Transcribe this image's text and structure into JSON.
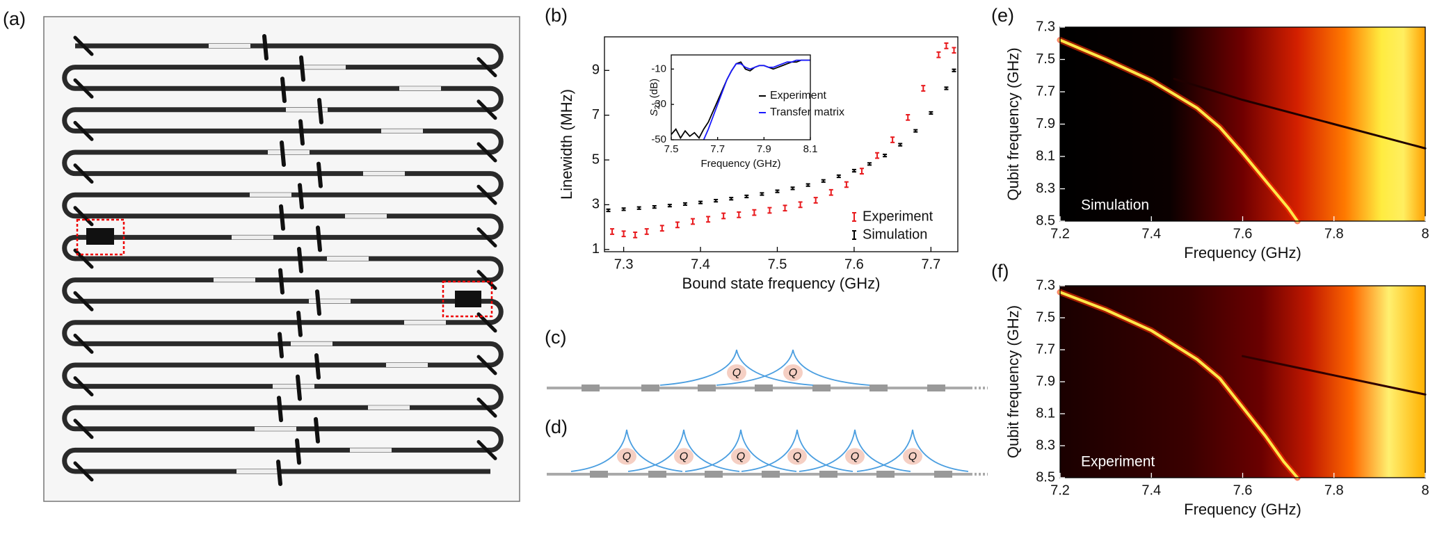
{
  "panel_labels": [
    "(a)",
    "(b)",
    "(c)",
    "(d)",
    "(e)",
    "(f)"
  ],
  "chart_data": [
    {
      "type": "scatter",
      "x_label": "Bound state frequency (GHz)",
      "y_label": "Linewidth (MHz)",
      "xlim": [
        7.275,
        7.735
      ],
      "xticks": [
        7.3,
        7.4,
        7.5,
        7.6,
        7.7
      ],
      "ylim": [
        0.9,
        10.5
      ],
      "yticks": [
        1,
        3,
        5,
        7,
        9
      ],
      "legend": "lower right",
      "series": [
        {
          "name": "Experiment",
          "color": "#e8191c",
          "x": [
            7.285,
            7.3,
            7.315,
            7.33,
            7.35,
            7.37,
            7.39,
            7.41,
            7.43,
            7.45,
            7.47,
            7.49,
            7.51,
            7.53,
            7.55,
            7.57,
            7.59,
            7.61,
            7.63,
            7.65,
            7.67,
            7.69,
            7.71,
            7.72,
            7.73
          ],
          "values": [
            1.8,
            1.7,
            1.65,
            1.8,
            1.95,
            2.1,
            2.25,
            2.35,
            2.5,
            2.55,
            2.65,
            2.75,
            2.85,
            3.0,
            3.2,
            3.55,
            3.9,
            4.5,
            5.2,
            5.9,
            6.9,
            8.2,
            9.7,
            10.1,
            9.9
          ],
          "errors": [
            0.12,
            0.12,
            0.12,
            0.12,
            0.12,
            0.12,
            0.12,
            0.12,
            0.12,
            0.12,
            0.12,
            0.12,
            0.12,
            0.12,
            0.12,
            0.12,
            0.12,
            0.12,
            0.12,
            0.12,
            0.12,
            0.12,
            0.12,
            0.12,
            0.12
          ]
        },
        {
          "name": "Simulation",
          "color": "#000000",
          "x": [
            7.28,
            7.3,
            7.32,
            7.34,
            7.36,
            7.38,
            7.4,
            7.42,
            7.44,
            7.46,
            7.48,
            7.5,
            7.52,
            7.54,
            7.56,
            7.58,
            7.6,
            7.62,
            7.64,
            7.66,
            7.68,
            7.7,
            7.72,
            7.73
          ],
          "values": [
            2.75,
            2.8,
            2.85,
            2.9,
            2.96,
            3.03,
            3.1,
            3.18,
            3.27,
            3.37,
            3.48,
            3.6,
            3.73,
            3.88,
            4.06,
            4.27,
            4.52,
            4.82,
            5.2,
            5.68,
            6.3,
            7.1,
            8.2,
            9.0
          ],
          "errors": [
            0.05,
            0.05,
            0.05,
            0.05,
            0.05,
            0.05,
            0.05,
            0.05,
            0.05,
            0.05,
            0.05,
            0.05,
            0.05,
            0.05,
            0.05,
            0.05,
            0.05,
            0.05,
            0.05,
            0.05,
            0.05,
            0.05,
            0.05,
            0.05
          ]
        }
      ]
    },
    {
      "type": "line",
      "x_label": "Frequency (GHz)",
      "y_label": {
        "symbol": "S",
        "subscript": "21",
        "unit": " (dB)"
      },
      "xlim": [
        7.5,
        8.1
      ],
      "xticks": [
        7.5,
        7.7,
        7.9,
        8.1
      ],
      "ylim": [
        -50,
        -2
      ],
      "yticks": [
        -10,
        -30,
        -50
      ],
      "legend": "right",
      "series": [
        {
          "name": "Experiment",
          "color": "#000000",
          "x": [
            7.5,
            7.52,
            7.54,
            7.56,
            7.58,
            7.6,
            7.62,
            7.64,
            7.66,
            7.68,
            7.7,
            7.72,
            7.74,
            7.76,
            7.78,
            7.8,
            7.82,
            7.84,
            7.86,
            7.88,
            7.9,
            7.92,
            7.94,
            7.96,
            7.98,
            8.0,
            8.02,
            8.04,
            8.06,
            8.08,
            8.1
          ],
          "values": [
            -47,
            -44,
            -49,
            -45,
            -48,
            -46,
            -49,
            -44,
            -40,
            -34,
            -28,
            -22,
            -16,
            -11,
            -7,
            -6,
            -10,
            -11,
            -9,
            -8,
            -8,
            -9,
            -10,
            -9,
            -8,
            -7,
            -6,
            -6,
            -5,
            -5,
            -5
          ]
        },
        {
          "name": "Transfer matrix",
          "color": "#1a1aff",
          "x": [
            7.64,
            7.66,
            7.68,
            7.7,
            7.72,
            7.74,
            7.76,
            7.78,
            7.8,
            7.82,
            7.84,
            7.86,
            7.88,
            7.9,
            7.92,
            7.94,
            7.96,
            7.98,
            8.0,
            8.02,
            8.04,
            8.06,
            8.08,
            8.1
          ],
          "values": [
            -50,
            -44,
            -37,
            -30,
            -23,
            -16,
            -11,
            -7,
            -7,
            -9,
            -10,
            -9,
            -8,
            -8,
            -9,
            -9,
            -8,
            -7,
            -6,
            -6,
            -5,
            -5,
            -5,
            -5
          ]
        }
      ]
    },
    {
      "type": "heatmap",
      "annotation": "Simulation",
      "x_label": "Frequency (GHz)",
      "y_label": "Qubit frequency (GHz)",
      "xlim": [
        7.2,
        8
      ],
      "xticks": [
        7.2,
        7.4,
        7.6,
        7.8,
        8
      ],
      "ylim": [
        8.5,
        7.3
      ],
      "yticks": [
        7.3,
        7.5,
        7.7,
        7.9,
        8.1,
        8.3,
        8.5
      ],
      "ridges": [
        {
          "color": "#ffe84a",
          "x": [
            7.2,
            7.3,
            7.4,
            7.5,
            7.55,
            7.6,
            7.65,
            7.7,
            7.72
          ],
          "y": [
            7.38,
            7.5,
            7.63,
            7.8,
            7.92,
            8.08,
            8.25,
            8.42,
            8.5
          ]
        },
        {
          "color": "#200000",
          "x": [
            7.45,
            7.6,
            7.8,
            8.0
          ],
          "y": [
            7.62,
            7.75,
            7.9,
            8.05
          ]
        }
      ]
    },
    {
      "type": "heatmap",
      "annotation": "Experiment",
      "x_label": "Frequency (GHz)",
      "y_label": "Qubit frequency (GHz)",
      "xlim": [
        7.2,
        8
      ],
      "xticks": [
        7.2,
        7.4,
        7.6,
        7.8,
        8
      ],
      "ylim": [
        8.5,
        7.3
      ],
      "yticks": [
        7.3,
        7.5,
        7.7,
        7.9,
        8.1,
        8.3,
        8.5
      ],
      "ridges": [
        {
          "color": "#ffe84a",
          "x": [
            7.2,
            7.3,
            7.4,
            7.5,
            7.55,
            7.6,
            7.65,
            7.69,
            7.72
          ],
          "y": [
            7.34,
            7.45,
            7.58,
            7.76,
            7.88,
            8.06,
            8.24,
            8.4,
            8.5
          ]
        },
        {
          "color": "#300000",
          "x": [
            7.6,
            7.7,
            7.8,
            7.9,
            8.0
          ],
          "y": [
            7.74,
            7.8,
            7.86,
            7.92,
            7.98
          ]
        }
      ]
    }
  ],
  "diagrams": {
    "c": {
      "qubits": [
        "Q",
        "Q"
      ]
    },
    "d": {
      "qubits": [
        "Q",
        "Q",
        "Q",
        "Q",
        "Q",
        "Q"
      ]
    }
  }
}
